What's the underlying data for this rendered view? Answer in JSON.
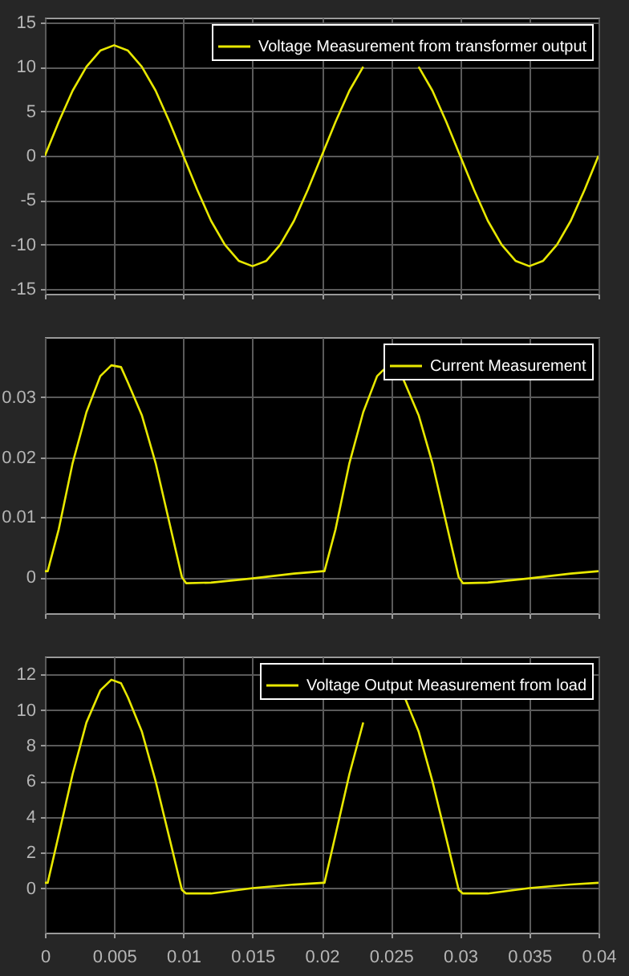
{
  "chart_data": [
    {
      "type": "line",
      "x": [
        0,
        0.001,
        0.002,
        0.003,
        0.004,
        0.005,
        0.006,
        0.007,
        0.008,
        0.009,
        0.01,
        0.011,
        0.012,
        0.013,
        0.014,
        0.015,
        0.016,
        0.017,
        0.018,
        0.019,
        0.02,
        0.021,
        0.022,
        0.023,
        0.024,
        0.025,
        0.026,
        0.027,
        0.028,
        0.029,
        0.03,
        0.031,
        0.032,
        0.033,
        0.034,
        0.035,
        0.036,
        0.037,
        0.038,
        0.039,
        0.04
      ],
      "series": [
        {
          "name": "Voltage Measurement from transformer output",
          "color": "#e8e800",
          "values": [
            0,
            3.8,
            7.3,
            10,
            11.8,
            12.4,
            11.8,
            10,
            7.3,
            3.8,
            0,
            -3.8,
            -7.3,
            -10,
            -11.8,
            -12.4,
            -11.8,
            -10,
            -7.3,
            -3.8,
            0,
            3.8,
            7.3,
            10,
            null,
            null,
            null,
            10,
            7.3,
            3.8,
            0,
            -3.8,
            -7.3,
            -10,
            -11.8,
            -12.4,
            -11.8,
            -10,
            -7.3,
            -3.8,
            0
          ]
        }
      ],
      "xlim": [
        0,
        0.04
      ],
      "xticks": [
        0,
        0.005,
        0.01,
        0.015,
        0.02,
        0.025,
        0.03,
        0.035,
        0.04
      ],
      "ylim": [
        -15.5,
        15.5
      ],
      "yticks": [
        -15,
        -10,
        -5,
        0,
        5,
        10,
        15
      ],
      "grid": true,
      "legend": "top right",
      "tick_labels": "y"
    },
    {
      "type": "line",
      "x": [
        0,
        0.0002,
        0.001,
        0.002,
        0.003,
        0.004,
        0.0048,
        0.0055,
        0.006,
        0.007,
        0.008,
        0.009,
        0.0099,
        0.0102,
        0.012,
        0.015,
        0.018,
        0.0201,
        0.0202,
        0.021,
        0.022,
        0.023,
        0.024,
        0.0248,
        0.0255,
        0.026,
        0.027,
        0.028,
        0.029,
        0.0299,
        0.0302,
        0.032,
        0.035,
        0.038,
        0.04
      ],
      "series": [
        {
          "name": "Current Measurement",
          "color": "#e8e800",
          "values": [
            0.001,
            0.001,
            0.008,
            0.019,
            0.0275,
            0.0335,
            0.0353,
            0.035,
            0.0324,
            0.027,
            0.019,
            0.009,
            0,
            -0.001,
            -0.0009,
            -0.0002,
            0.0006,
            0.001,
            0.001,
            0.008,
            0.019,
            0.0275,
            0.0335,
            0.0353,
            0.035,
            0.0324,
            0.027,
            0.019,
            0.009,
            0,
            -0.001,
            -0.0009,
            -0.0002,
            0.0006,
            0.001
          ]
        }
      ],
      "xlim": [
        0,
        0.04
      ],
      "xticks": [
        0,
        0.005,
        0.01,
        0.015,
        0.02,
        0.025,
        0.03,
        0.035,
        0.04
      ],
      "ylim": [
        -0.006,
        0.04
      ],
      "yticks": [
        0,
        0.01,
        0.02,
        0.03
      ],
      "grid": true,
      "legend": "top right",
      "tick_labels": "y"
    },
    {
      "type": "line",
      "x": [
        0,
        0.0002,
        0.001,
        0.002,
        0.003,
        0.004,
        0.0048,
        0.0055,
        0.006,
        0.007,
        0.008,
        0.009,
        0.0099,
        0.0102,
        0.012,
        0.015,
        0.018,
        0.0201,
        0.0202,
        0.021,
        0.022,
        0.023,
        0.024,
        0.0248,
        0.0255,
        0.026,
        0.027,
        0.028,
        0.029,
        0.0299,
        0.0302,
        0.032,
        0.035,
        0.038,
        0.04
      ],
      "series": [
        {
          "name": "Voltage Output Measurement from load",
          "color": "#e8e800",
          "values": [
            0.3,
            0.3,
            3,
            6.4,
            9.3,
            11.1,
            11.7,
            11.5,
            10.7,
            8.8,
            6,
            2.8,
            -0.1,
            -0.3,
            -0.3,
            0,
            0.2,
            0.3,
            0.3,
            3,
            6.4,
            9.3,
            null,
            null,
            null,
            10.7,
            8.8,
            6,
            2.8,
            -0.1,
            -0.3,
            -0.3,
            0,
            0.2,
            0.3
          ]
        }
      ],
      "xlim": [
        0,
        0.04
      ],
      "xticks": [
        0,
        0.005,
        0.01,
        0.015,
        0.02,
        0.025,
        0.03,
        0.035,
        0.04
      ],
      "ylim": [
        -2.5,
        13
      ],
      "yticks": [
        0,
        2,
        4,
        6,
        8,
        10,
        12
      ],
      "grid": true,
      "legend": "top right"
    }
  ]
}
